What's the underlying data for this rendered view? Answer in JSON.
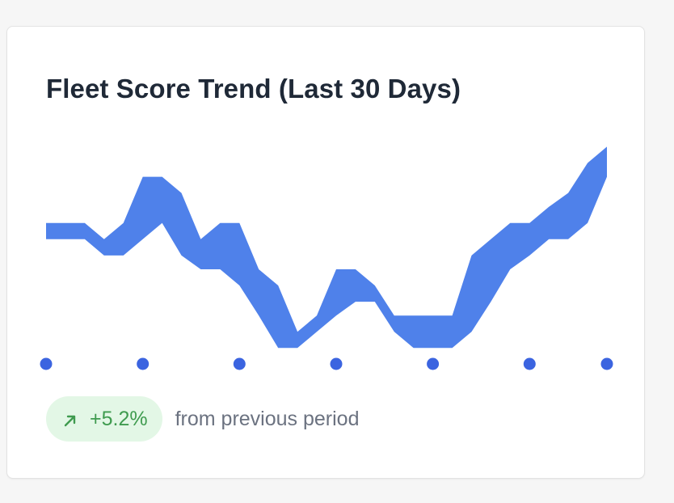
{
  "card": {
    "title": "Fleet Score Trend (Last 30 Days)"
  },
  "change": {
    "value": "+5.2%",
    "direction_icon": "arrow-up-right-icon",
    "label": "from previous period",
    "color": "#3f9b4f",
    "background": "#e3f7e6"
  },
  "chart_data": {
    "type": "area",
    "title": "Fleet Score Trend (Last 30 Days)",
    "xlabel": "",
    "ylabel": "",
    "grid": false,
    "legend": "none",
    "series_color": "#4f81ea",
    "marker_color": "#3b64e0",
    "ylim": [
      0,
      100
    ],
    "x": [
      1,
      2,
      3,
      4,
      5,
      6,
      7,
      8,
      9,
      10,
      11,
      12,
      13,
      14,
      15,
      16,
      17,
      18,
      19,
      20,
      21,
      22,
      23,
      24,
      25,
      26,
      27,
      28,
      29,
      30
    ],
    "upper": [
      63,
      63,
      63,
      56,
      63,
      83,
      83,
      76,
      56,
      63,
      63,
      43,
      36,
      16,
      23,
      43,
      43,
      36,
      23,
      23,
      23,
      23,
      49,
      56,
      63,
      63,
      70,
      76,
      89,
      96
    ],
    "lower": [
      56,
      56,
      56,
      49,
      49,
      56,
      63,
      49,
      43,
      43,
      36,
      23,
      9,
      9,
      16,
      23,
      29,
      29,
      16,
      9,
      9,
      9,
      16,
      29,
      43,
      49,
      56,
      56,
      63,
      83
    ],
    "x_markers": [
      1,
      6,
      11,
      16,
      21,
      26,
      30
    ]
  }
}
